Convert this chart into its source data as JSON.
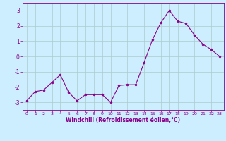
{
  "x": [
    0,
    1,
    2,
    3,
    4,
    5,
    6,
    7,
    8,
    9,
    10,
    11,
    12,
    13,
    14,
    15,
    16,
    17,
    18,
    19,
    20,
    21,
    22,
    23
  ],
  "y": [
    -2.9,
    -2.3,
    -2.2,
    -1.7,
    -1.2,
    -2.35,
    -2.9,
    -2.5,
    -2.5,
    -2.5,
    -3.0,
    -1.9,
    -1.85,
    -1.85,
    -0.4,
    1.1,
    2.2,
    3.0,
    2.3,
    2.15,
    1.4,
    0.8,
    0.45,
    0.0
  ],
  "line_color": "#880088",
  "marker": "o",
  "marker_size": 2.0,
  "background_color": "#cceeff",
  "grid_color": "#aacccc",
  "xlabel": "Windchill (Refroidissement éolien,°C)",
  "xlabel_color": "#880088",
  "tick_color": "#880088",
  "ylim": [
    -3.5,
    3.5
  ],
  "xlim": [
    -0.5,
    23.5
  ],
  "yticks": [
    -3,
    -2,
    -1,
    0,
    1,
    2,
    3
  ],
  "xticks": [
    0,
    1,
    2,
    3,
    4,
    5,
    6,
    7,
    8,
    9,
    10,
    11,
    12,
    13,
    14,
    15,
    16,
    17,
    18,
    19,
    20,
    21,
    22,
    23
  ],
  "spine_color": "#880088",
  "ytick_labels": [
    "-3",
    "-2",
    "-1",
    "0",
    "1",
    "2",
    "3"
  ],
  "xtick_labels": [
    "0",
    "1",
    "2",
    "3",
    "4",
    "5",
    "6",
    "7",
    "8",
    "9",
    "10",
    "11",
    "12",
    "13",
    "14",
    "15",
    "16",
    "17",
    "18",
    "19",
    "20",
    "21",
    "22",
    "23"
  ]
}
